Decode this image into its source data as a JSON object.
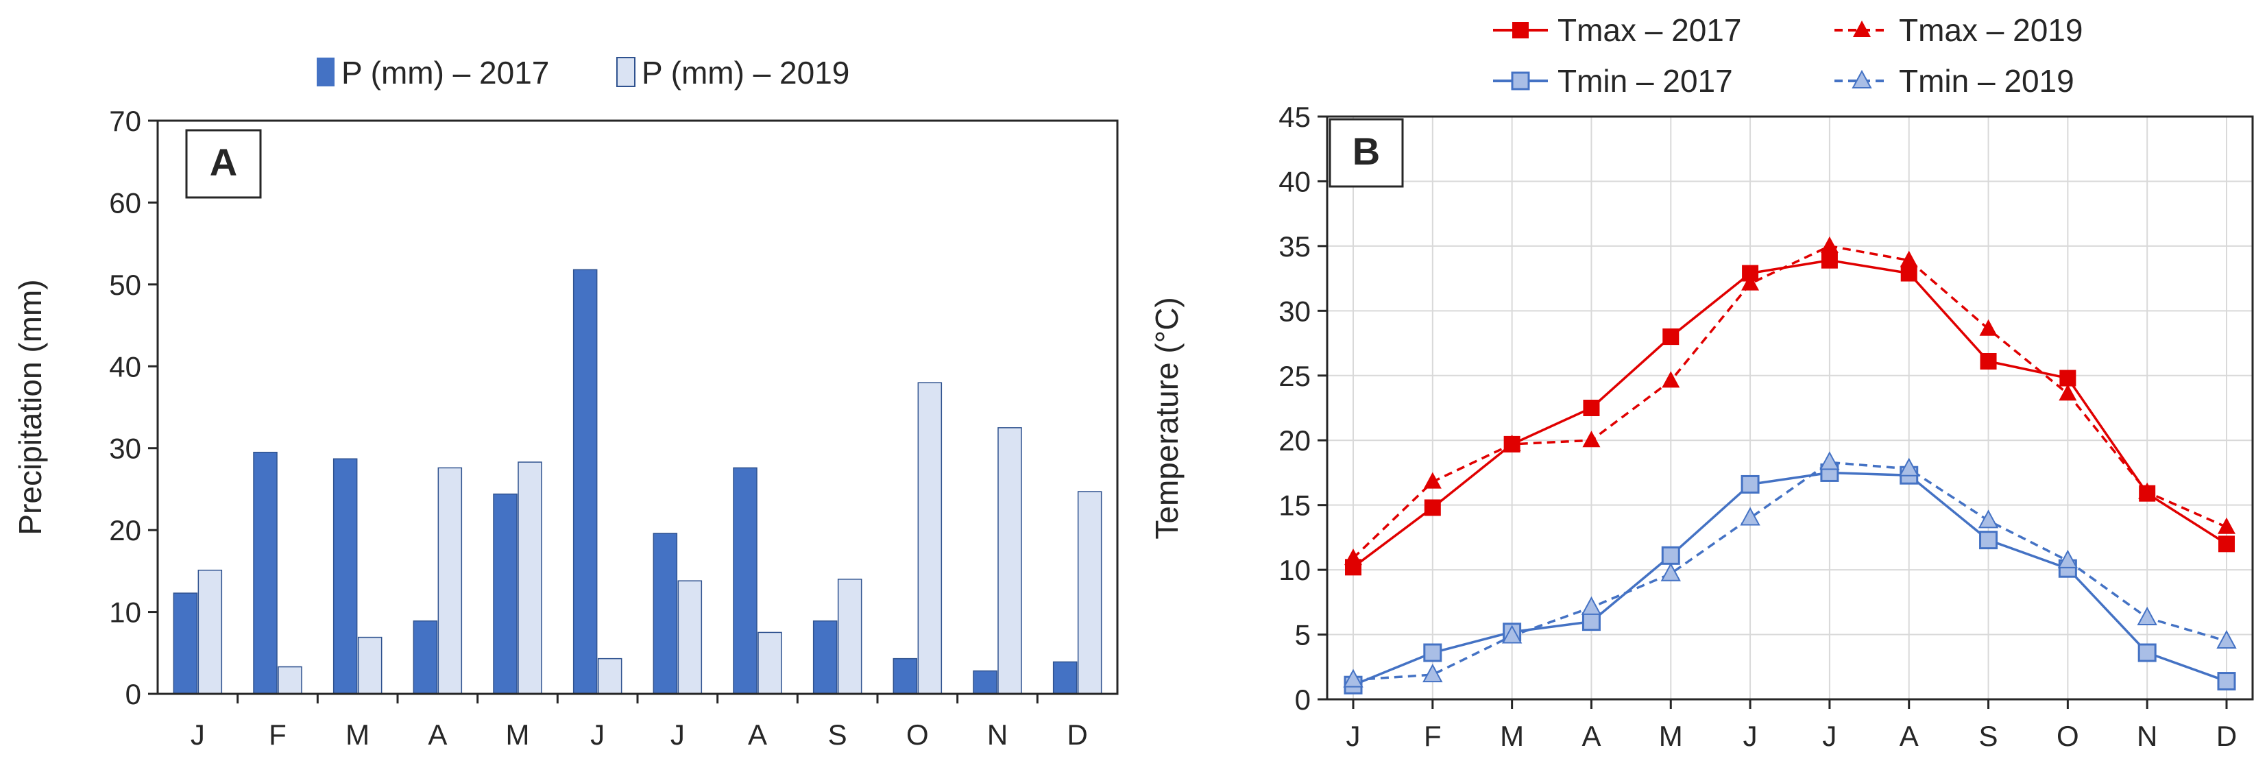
{
  "chart_data": [
    {
      "panel_label": "A",
      "type": "bar",
      "title": "",
      "xlabel": "",
      "ylabel": "Precipitation  (mm)",
      "ylim": [
        0,
        70
      ],
      "yticks": [
        0,
        10,
        20,
        30,
        40,
        50,
        60,
        70
      ],
      "grid": false,
      "legend_position": "top-center",
      "categories": [
        "J",
        "F",
        "M",
        "A",
        "M",
        "J",
        "J",
        "A",
        "S",
        "O",
        "N",
        "D"
      ],
      "series": [
        {
          "name": "P (mm) – 2017",
          "color": "#4472C4",
          "values": [
            12.3,
            29.5,
            28.7,
            8.9,
            24.4,
            51.8,
            19.6,
            27.6,
            8.9,
            4.3,
            2.8,
            3.9
          ]
        },
        {
          "name": "P (mm) – 2019",
          "color": "#DAE3F3",
          "values": [
            15.1,
            3.3,
            6.9,
            27.6,
            28.3,
            4.3,
            13.8,
            7.5,
            14.0,
            38.0,
            32.5,
            24.7
          ]
        }
      ]
    },
    {
      "panel_label": "B",
      "type": "line",
      "title": "",
      "xlabel": "",
      "ylabel": "Temperature (°C)",
      "ylim": [
        0,
        45
      ],
      "yticks": [
        0,
        5,
        10,
        15,
        20,
        25,
        30,
        35,
        40,
        45
      ],
      "grid": true,
      "legend_position": "top-center",
      "categories": [
        "J",
        "F",
        "M",
        "A",
        "M",
        "J",
        "J",
        "A",
        "S",
        "O",
        "N",
        "D"
      ],
      "series": [
        {
          "name": "Tmax – 2017",
          "color": "#E00000",
          "line_style": "solid",
          "marker": "square",
          "values": [
            10.2,
            14.8,
            19.7,
            22.5,
            28.0,
            32.9,
            33.9,
            32.9,
            26.1,
            24.8,
            15.9,
            12.0
          ]
        },
        {
          "name": "Tmax – 2019",
          "color": "#E00000",
          "line_style": "dashed",
          "marker": "triangle",
          "values": [
            10.9,
            16.8,
            19.7,
            20.0,
            24.6,
            32.1,
            35.0,
            33.9,
            28.6,
            23.6,
            16.0,
            13.3
          ]
        },
        {
          "name": "Tmin – 2017",
          "color": "#4472C4",
          "line_style": "solid",
          "marker": "square",
          "values": [
            1.1,
            3.6,
            5.2,
            6.0,
            11.1,
            16.6,
            17.5,
            17.3,
            12.3,
            10.1,
            3.6,
            1.4
          ]
        },
        {
          "name": "Tmin – 2019",
          "color": "#4472C4",
          "line_style": "dashed",
          "marker": "triangle",
          "values": [
            1.5,
            1.9,
            4.9,
            7.1,
            9.7,
            14.0,
            18.3,
            17.8,
            13.8,
            10.7,
            6.3,
            4.5
          ]
        }
      ]
    }
  ]
}
